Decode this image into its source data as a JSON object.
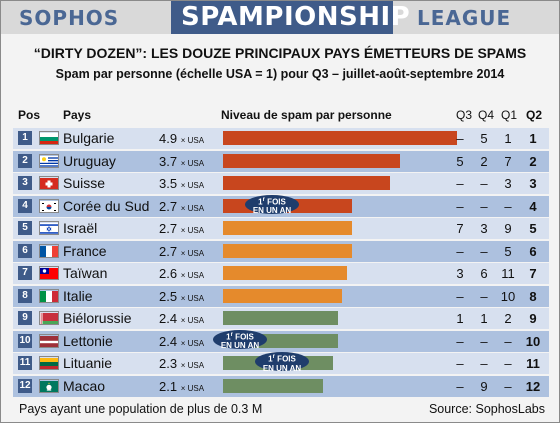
{
  "header": {
    "brand_left": "SOPHOS",
    "title": "SPAMPIONSHIP",
    "brand_right": "LEAGUE"
  },
  "titles": {
    "main": "“DIRTY DOZEN”: LES DOUZE PRINCIPAUX PAYS ÉMETTEURS DE SPAMS",
    "sub": "Spam par personne (échelle USA = 1) pour Q3 – juillet-août-septembre 2014"
  },
  "columns": {
    "pos": "Pos",
    "country": "Pays",
    "level": "Niveau de spam par personne",
    "q3": "Q3",
    "q4": "Q4",
    "q1": "Q1",
    "q2": "Q2"
  },
  "unit_suffix": "× USA",
  "badge_text": {
    "line1": "1",
    "sup": "r",
    "line1b": " FOIS",
    "line2": "EN UN AN"
  },
  "footer": {
    "left": "Pays ayant une population de plus de 0.3 M",
    "right": "Source: SophosLabs"
  },
  "colors": {
    "red": "#c8461e",
    "orange": "#e58a2c",
    "green": "#6e8e62",
    "navy": "#3f5b89"
  },
  "chart_data": {
    "type": "bar",
    "title": "“DIRTY DOZEN”: LES DOUZE PRINCIPAUX PAYS ÉMETTEURS DE SPAMS",
    "subtitle": "Spam par personne (échelle USA = 1) pour Q3 – juillet-août-septembre 2014",
    "xlim": [
      0,
      4.9
    ],
    "rows": [
      {
        "pos": "1",
        "country": "Bulgarie",
        "flag": "bg",
        "value": 4.9,
        "value_label": "4.9",
        "color": "red",
        "q3": "–",
        "q4": "5",
        "q1": "1",
        "q2": "1",
        "badge": false
      },
      {
        "pos": "2",
        "country": "Uruguay",
        "flag": "uy",
        "value": 3.7,
        "value_label": "3.7",
        "color": "red",
        "q3": "5",
        "q4": "2",
        "q1": "7",
        "q2": "2",
        "badge": false
      },
      {
        "pos": "3",
        "country": "Suisse",
        "flag": "ch",
        "value": 3.5,
        "value_label": "3.5",
        "color": "red",
        "q3": "–",
        "q4": "–",
        "q1": "3",
        "q2": "3",
        "badge": false
      },
      {
        "pos": "4",
        "country": "Corée du Sud",
        "flag": "kr",
        "value": 2.7,
        "value_label": "2.7",
        "color": "red",
        "q3": "–",
        "q4": "–",
        "q1": "–",
        "q2": "4",
        "badge": true
      },
      {
        "pos": "5",
        "country": "Israël",
        "flag": "il",
        "value": 2.7,
        "value_label": "2.7",
        "color": "orange",
        "q3": "7",
        "q4": "3",
        "q1": "9",
        "q2": "5",
        "badge": false
      },
      {
        "pos": "6",
        "country": "France",
        "flag": "fr",
        "value": 2.7,
        "value_label": "2.7",
        "color": "orange",
        "q3": "–",
        "q4": "–",
        "q1": "5",
        "q2": "6",
        "badge": false
      },
      {
        "pos": "7",
        "country": "Taïwan",
        "flag": "tw",
        "value": 2.6,
        "value_label": "2.6",
        "color": "orange",
        "q3": "3",
        "q4": "6",
        "q1": "11",
        "q2": "7",
        "badge": false
      },
      {
        "pos": "8",
        "country": "Italie",
        "flag": "it",
        "value": 2.5,
        "value_label": "2.5",
        "color": "orange",
        "q3": "–",
        "q4": "–",
        "q1": "10",
        "q2": "8",
        "badge": false
      },
      {
        "pos": "9",
        "country": "Biélorussie",
        "flag": "by",
        "value": 2.4,
        "value_label": "2.4",
        "color": "green",
        "q3": "1",
        "q4": "1",
        "q1": "2",
        "q2": "9",
        "badge": false
      },
      {
        "pos": "10",
        "country": "Lettonie",
        "flag": "lv",
        "value": 2.4,
        "value_label": "2.4",
        "color": "green",
        "q3": "–",
        "q4": "–",
        "q1": "–",
        "q2": "10",
        "badge": true
      },
      {
        "pos": "11",
        "country": "Lituanie",
        "flag": "lt",
        "value": 2.3,
        "value_label": "2.3",
        "color": "green",
        "q3": "–",
        "q4": "–",
        "q1": "–",
        "q2": "11",
        "badge": true
      },
      {
        "pos": "12",
        "country": "Macao",
        "flag": "mo",
        "value": 2.1,
        "value_label": "2.1",
        "color": "green",
        "q3": "–",
        "q4": "9",
        "q1": "–",
        "q2": "12",
        "badge": false
      }
    ]
  }
}
